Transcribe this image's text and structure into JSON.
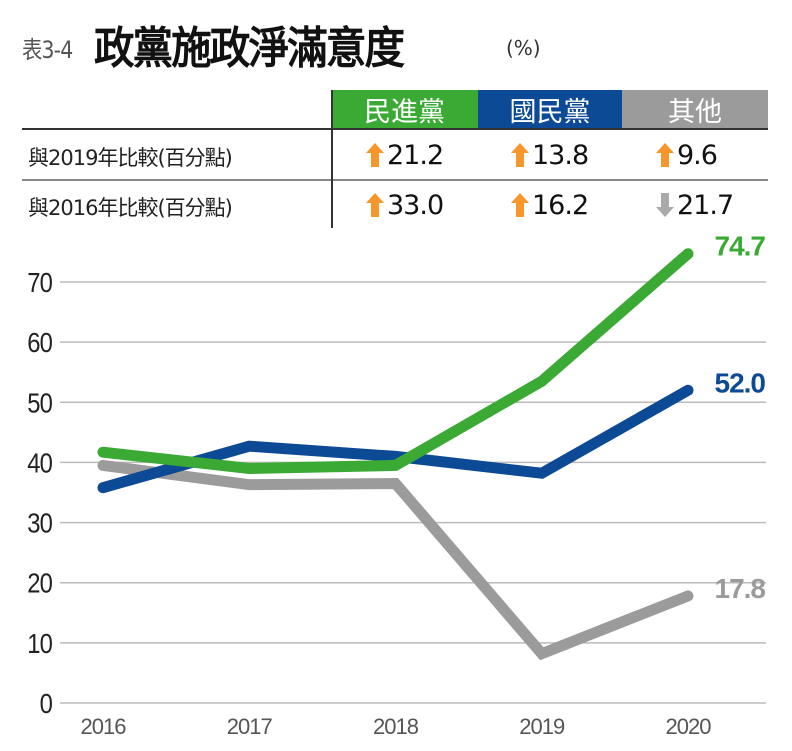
{
  "title": {
    "prefix": "表3-4",
    "main": "政黨施政淨滿意度",
    "unit": "(%)"
  },
  "table": {
    "columns": [
      {
        "label": "民進黨",
        "color": "#3aaa35"
      },
      {
        "label": "國民黨",
        "color": "#0d4a96"
      },
      {
        "label": "其他",
        "color": "#9b9b9b"
      }
    ],
    "rows": [
      {
        "label": "與2019年比較(百分點)",
        "cells": [
          {
            "value": "21.2",
            "direction": "up"
          },
          {
            "value": "13.8",
            "direction": "up"
          },
          {
            "value": "9.6",
            "direction": "up"
          }
        ]
      },
      {
        "label": "與2016年比較(百分點)",
        "cells": [
          {
            "value": "33.0",
            "direction": "up"
          },
          {
            "value": "16.2",
            "direction": "up"
          },
          {
            "value": "21.7",
            "direction": "down"
          }
        ]
      }
    ],
    "arrow_colors": {
      "up": "#f7962a",
      "down": "#aaaaaa"
    }
  },
  "chart_data": {
    "type": "line",
    "categories": [
      "2016",
      "2017",
      "2018",
      "2019",
      "2020"
    ],
    "ylim": [
      0,
      70
    ],
    "yticks": [
      0,
      10,
      20,
      30,
      40,
      50,
      60,
      70
    ],
    "grid": true,
    "series": [
      {
        "name": "其他",
        "color": "#9b9b9b",
        "values": [
          39.5,
          36.3,
          36.5,
          8.2,
          17.8
        ],
        "end_label": "17.8"
      },
      {
        "name": "國民黨",
        "color": "#0d4a96",
        "values": [
          35.8,
          42.7,
          41.0,
          38.2,
          52.0
        ],
        "end_label": "52.0"
      },
      {
        "name": "民進黨",
        "color": "#3aaa35",
        "values": [
          41.7,
          39.0,
          39.5,
          53.5,
          74.7
        ],
        "end_label": "74.7"
      }
    ]
  }
}
